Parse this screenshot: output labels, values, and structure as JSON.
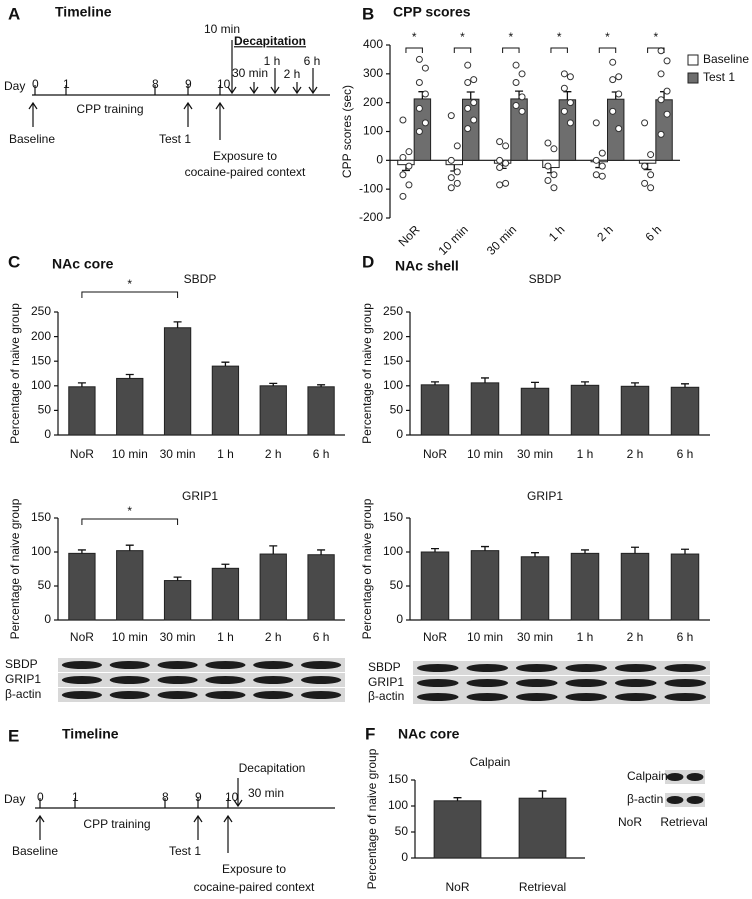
{
  "timelines": [
    {
      "panel_label": "A",
      "title": "Timeline",
      "day": "Day",
      "days": [
        "0",
        "1",
        "8",
        "9",
        "10"
      ],
      "phase": "CPP training",
      "baseline": "Baseline",
      "test": "Test 1",
      "exposure": [
        "Exposure to",
        "cocaine-paired context"
      ],
      "decapitation": "Decapitation",
      "times": [
        "10 min",
        "30 min",
        "1 h",
        "2 h",
        "6 h"
      ]
    },
    {
      "panel_label": "E",
      "title": "Timeline",
      "day": "Day",
      "days": [
        "0",
        "1",
        "8",
        "9",
        "10"
      ],
      "phase": "CPP training",
      "baseline": "Baseline",
      "test": "Test 1",
      "exposure": [
        "Exposure to",
        "cocaine-paired context"
      ],
      "decapitation": "Decapitation",
      "times": [
        "30 min"
      ]
    }
  ],
  "chart_data": [
    {
      "type": "bar",
      "panel_label": "B",
      "panel_title": "CPP scores",
      "ylabel": "CPP scores (sec)",
      "categories": [
        "NoR",
        "10 min",
        "30 min",
        "1 h",
        "2 h",
        "6 h"
      ],
      "series": [
        {
          "name": "Baseline",
          "color": "#ffffff",
          "values": [
            -15,
            -15,
            -10,
            -25,
            -5,
            -10
          ],
          "errors": [
            20,
            22,
            18,
            18,
            20,
            22
          ],
          "points": [
            [
              140,
              30,
              10,
              -20,
              -50,
              -85,
              -125
            ],
            [
              155,
              50,
              0,
              -40,
              -60,
              -80,
              -95
            ],
            [
              65,
              50,
              0,
              -10,
              -25,
              -80,
              -85
            ],
            [
              60,
              40,
              -20,
              -50,
              -70,
              -95
            ],
            [
              130,
              25,
              0,
              -20,
              -50,
              -55
            ],
            [
              130,
              20,
              -20,
              -50,
              -80,
              -95
            ]
          ]
        },
        {
          "name": "Test 1",
          "color": "#6e6e6e",
          "values": [
            213,
            212,
            213,
            210,
            212,
            210
          ],
          "errors": [
            25,
            25,
            27,
            28,
            25,
            28
          ],
          "points": [
            [
              350,
              320,
              270,
              230,
              180,
              130,
              100
            ],
            [
              330,
              280,
              270,
              200,
              180,
              140,
              110
            ],
            [
              330,
              300,
              270,
              220,
              190,
              170
            ],
            [
              300,
              290,
              250,
              200,
              170,
              130
            ],
            [
              340,
              290,
              280,
              230,
              170,
              110
            ],
            [
              380,
              345,
              300,
              240,
              210,
              160,
              90
            ]
          ]
        }
      ],
      "ylim": [
        -200,
        400
      ],
      "yticks": [
        -200,
        -100,
        0,
        100,
        200,
        300,
        400
      ],
      "annotations": [
        "*",
        "*",
        "*",
        "*",
        "*",
        "*"
      ],
      "legend": "right"
    },
    {
      "type": "bar",
      "panel_label": "C",
      "panel_title": "NAc core",
      "title": "SBDP",
      "ylabel": "Percentage of naive group",
      "categories": [
        "NoR",
        "10 min",
        "30 min",
        "1 h",
        "2 h",
        "6 h"
      ],
      "values": [
        98,
        115,
        218,
        140,
        100,
        98
      ],
      "errors": [
        8,
        8,
        12,
        8,
        5,
        4
      ],
      "color": "#4a4a4a",
      "ylim": [
        0,
        250
      ],
      "yticks": [
        0,
        50,
        100,
        150,
        200,
        250
      ],
      "annotations": [
        "*"
      ]
    },
    {
      "type": "bar",
      "title": "GRIP1",
      "ylabel": "Percentage of naive group",
      "categories": [
        "NoR",
        "10 min",
        "30 min",
        "1 h",
        "2 h",
        "6 h"
      ],
      "values": [
        98,
        102,
        58,
        76,
        97,
        96
      ],
      "errors": [
        5,
        8,
        5,
        6,
        12,
        7
      ],
      "color": "#4a4a4a",
      "ylim": [
        0,
        150
      ],
      "yticks": [
        0,
        50,
        100,
        150
      ],
      "annotations": [
        "*"
      ]
    },
    {
      "type": "bar",
      "panel_label": "D",
      "panel_title": "NAc shell",
      "title": "SBDP",
      "ylabel": "Percentage of naive group",
      "categories": [
        "NoR",
        "10 min",
        "30 min",
        "1 h",
        "2 h",
        "6 h"
      ],
      "values": [
        102,
        106,
        95,
        101,
        99,
        97
      ],
      "errors": [
        6,
        10,
        12,
        7,
        7,
        7
      ],
      "color": "#4a4a4a",
      "ylim": [
        0,
        250
      ],
      "yticks": [
        0,
        50,
        100,
        150,
        200,
        250
      ]
    },
    {
      "type": "bar",
      "title": "GRIP1",
      "ylabel": "Percentage of naive group",
      "categories": [
        "NoR",
        "10 min",
        "30 min",
        "1 h",
        "2 h",
        "6 h"
      ],
      "values": [
        100,
        102,
        93,
        98,
        98,
        97
      ],
      "errors": [
        5,
        6,
        6,
        5,
        9,
        7
      ],
      "color": "#4a4a4a",
      "ylim": [
        0,
        150
      ],
      "yticks": [
        0,
        50,
        100,
        150
      ]
    },
    {
      "type": "bar",
      "panel_label": "F",
      "panel_title": "NAc core",
      "title": "Calpain",
      "ylabel": "Percentage of naive group",
      "categories": [
        "NoR",
        "Retrieval"
      ],
      "values": [
        110,
        115
      ],
      "errors": [
        6,
        14
      ],
      "color": "#4a4a4a",
      "ylim": [
        0,
        150
      ],
      "yticks": [
        0,
        50,
        100,
        150
      ]
    }
  ],
  "blots": [
    {
      "rows": [
        "SBDP",
        "GRIP1",
        "β-actin"
      ]
    },
    {
      "rows": [
        "SBDP",
        "GRIP1",
        "β-actin"
      ]
    },
    {
      "rows": [
        "Calpain",
        "β-actin"
      ],
      "lanes": [
        "NoR",
        "Retrieval"
      ]
    }
  ]
}
